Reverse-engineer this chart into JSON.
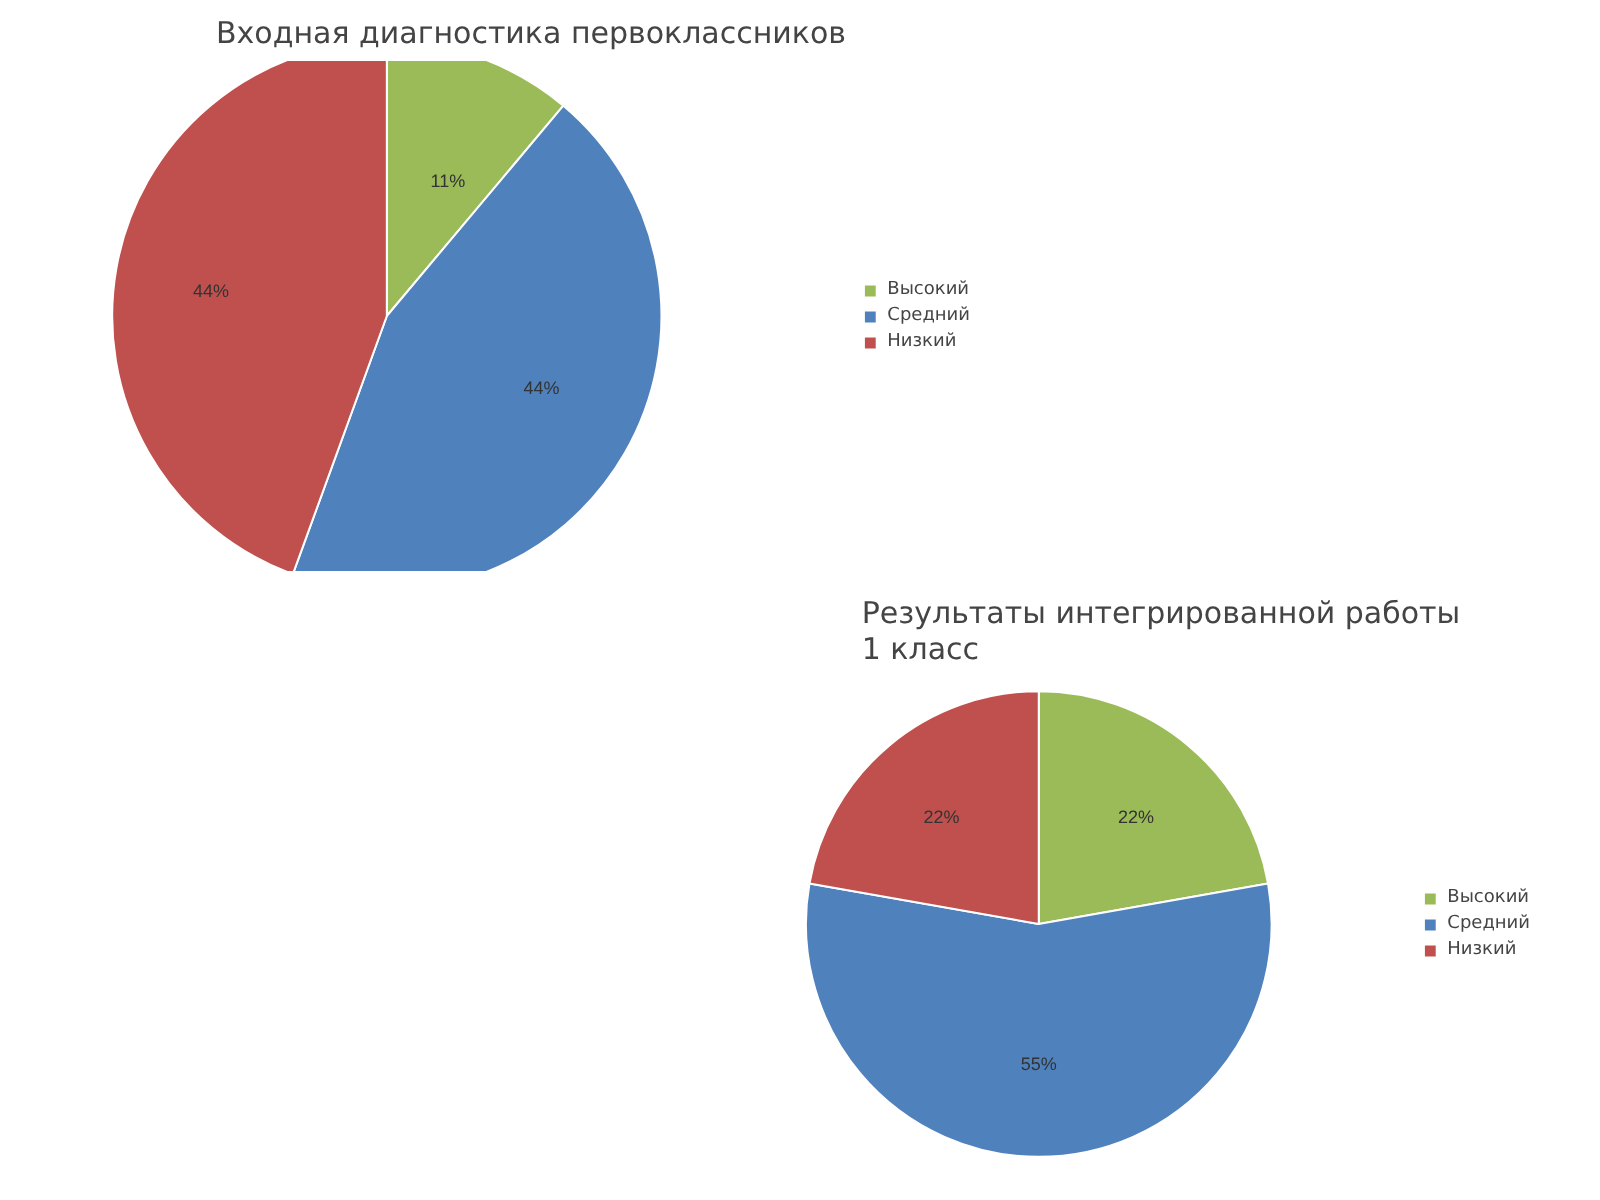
{
  "chart_data": [
    {
      "type": "pie",
      "title": "Входная диагностика первоклассников",
      "categories": [
        "Высокий",
        "Средний",
        "Низкий"
      ],
      "values": [
        11,
        44,
        44
      ],
      "colors": [
        "#9bbb59",
        "#4f81bd",
        "#c0504d"
      ],
      "value_labels": [
        "11%",
        "44%",
        "44%"
      ],
      "legend": "right"
    },
    {
      "type": "pie",
      "title": "Результаты интегрированной работы\n1 класс",
      "categories": [
        "Высокий",
        "Средний",
        "Низкий"
      ],
      "values": [
        22,
        55,
        22
      ],
      "colors": [
        "#9bbb59",
        "#4f81bd",
        "#c0504d"
      ],
      "value_labels": [
        "22%",
        "55%",
        "22%"
      ],
      "legend": "right"
    }
  ]
}
